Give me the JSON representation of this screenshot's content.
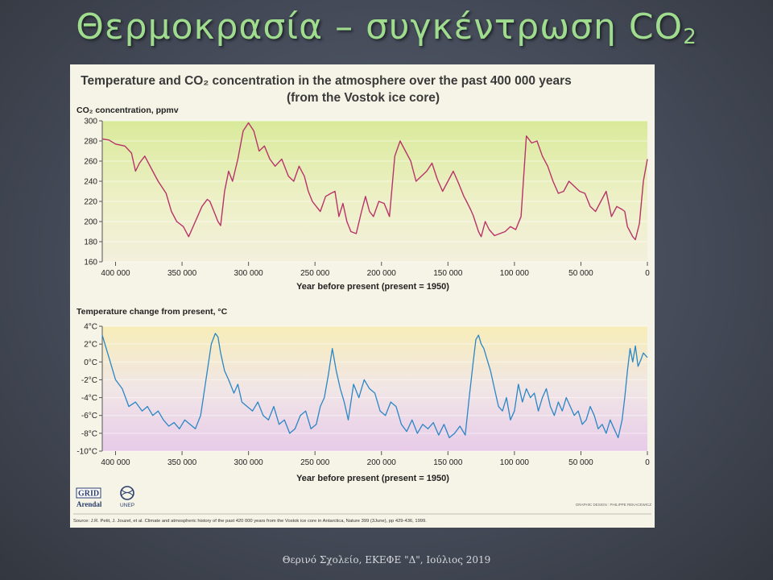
{
  "slide": {
    "title_main": "Θερμοκρασία – συγκέντρωση CO",
    "title_sub": "2",
    "footer": "Θερινό Σχολείο, ΕΚΕΦΕ \"Δ\", Ιούλιος 2019"
  },
  "figure": {
    "title_line1": "Temperature and CO₂ concentration in the atmosphere over the past 400 000 years",
    "title_line2": "(from the Vostok ice core)",
    "logo_grid": "GRID",
    "logo_arendal": "Arendal",
    "logo_unep": "UNEP",
    "credit": "GRAPHIC DESIGN : PHILIPPE REKACEWICZ",
    "source": "Source: J.R. Petit, J. Jouzel, et al. Climate and atmospheric history of the past 420 000 years from the Vostok ice core in Antarctica, Nature 399 (3June), pp 429-436, 1999."
  },
  "colors": {
    "co2_line": "#b8336a",
    "temp_line": "#2b86c5",
    "title_green": "#9fdc8e"
  },
  "chart_data": [
    {
      "type": "line",
      "ylabel": "CO₂ concentration, ppmv",
      "xlabel": "Year before present (present = 1950)",
      "xlim": [
        410000,
        0
      ],
      "ylim": [
        160,
        300
      ],
      "xticks": [
        400000,
        350000,
        300000,
        250000,
        200000,
        150000,
        100000,
        50000,
        0
      ],
      "xtick_labels": [
        "400 000",
        "350 000",
        "300 000",
        "250 000",
        "200 000",
        "150 000",
        "100 000",
        "50 000",
        "0"
      ],
      "yticks": [
        160,
        180,
        200,
        220,
        240,
        260,
        280,
        300
      ],
      "ytick_labels": [
        "160",
        "180",
        "200",
        "220",
        "240",
        "260",
        "280",
        "300"
      ],
      "series": [
        {
          "x": [
            410000,
            405000,
            400000,
            393000,
            388000,
            385000,
            382000,
            378000,
            372000,
            368000,
            362000,
            358000,
            354000,
            349000,
            345000,
            340000,
            335000,
            331000,
            329000,
            326000,
            323000,
            321000,
            318000,
            315000,
            312000,
            308000,
            304000,
            300000,
            296000,
            292000,
            288000,
            284000,
            280000,
            275000,
            270000,
            266000,
            262000,
            258000,
            255000,
            252000,
            249000,
            246000,
            242000,
            238000,
            235000,
            232000,
            229000,
            226000,
            223000,
            219000,
            215000,
            212000,
            209000,
            206000,
            202000,
            198000,
            194000,
            190000,
            186000,
            182000,
            178000,
            174000,
            170000,
            166000,
            162000,
            158000,
            154000,
            150000,
            146000,
            142000,
            138000,
            136000,
            133000,
            131000,
            129000,
            127000,
            125000,
            122000,
            119000,
            115000,
            111000,
            107000,
            103000,
            99000,
            95000,
            91000,
            87000,
            83000,
            79000,
            75000,
            71000,
            67000,
            63000,
            59000,
            55000,
            51000,
            47000,
            43000,
            39000,
            35000,
            31000,
            27000,
            23000,
            19000,
            17000,
            15000,
            13000,
            11000,
            9000,
            6000,
            3000,
            0
          ],
          "y": [
            282,
            281,
            277,
            275,
            268,
            250,
            258,
            265,
            250,
            240,
            228,
            210,
            200,
            195,
            185,
            200,
            215,
            222,
            220,
            210,
            200,
            196,
            230,
            250,
            240,
            262,
            290,
            298,
            290,
            270,
            275,
            262,
            255,
            262,
            245,
            240,
            255,
            245,
            230,
            220,
            215,
            210,
            225,
            228,
            230,
            205,
            218,
            200,
            190,
            188,
            210,
            225,
            210,
            205,
            220,
            218,
            205,
            265,
            280,
            270,
            260,
            240,
            245,
            250,
            258,
            242,
            230,
            240,
            250,
            238,
            225,
            220,
            212,
            206,
            198,
            190,
            185,
            200,
            192,
            186,
            188,
            190,
            195,
            192,
            205,
            285,
            278,
            280,
            265,
            255,
            240,
            228,
            230,
            240,
            235,
            230,
            228,
            215,
            210,
            220,
            230,
            205,
            215,
            212,
            210,
            195,
            190,
            185,
            182,
            198,
            240,
            262
          ]
        }
      ]
    },
    {
      "type": "line",
      "ylabel": "Temperature change from present, °C",
      "xlabel": "Year before present (present = 1950)",
      "xlim": [
        410000,
        0
      ],
      "ylim": [
        -10,
        4
      ],
      "xticks": [
        400000,
        350000,
        300000,
        250000,
        200000,
        150000,
        100000,
        50000,
        0
      ],
      "xtick_labels": [
        "400 000",
        "350 000",
        "300 000",
        "250 000",
        "200 000",
        "150 000",
        "100 000",
        "50 000",
        "0"
      ],
      "yticks": [
        4,
        2,
        0,
        -2,
        -4,
        -6,
        -8,
        -10
      ],
      "ytick_labels": [
        "4°C",
        "2°C",
        "0°C",
        "-2°C",
        "-4°C",
        "-6°C",
        "-8°C",
        "-10°C"
      ],
      "series": [
        {
          "x": [
            410000,
            405000,
            400000,
            395000,
            390000,
            385000,
            380000,
            376000,
            372000,
            368000,
            364000,
            360000,
            356000,
            352000,
            348000,
            344000,
            340000,
            336000,
            332000,
            328000,
            325000,
            323000,
            321000,
            318000,
            315000,
            311000,
            308000,
            305000,
            301000,
            297000,
            293000,
            289000,
            285000,
            281000,
            277000,
            273000,
            269000,
            265000,
            261000,
            257000,
            253000,
            249000,
            246000,
            243000,
            240000,
            237000,
            234000,
            231000,
            228000,
            225000,
            221000,
            217000,
            213000,
            209000,
            205000,
            201000,
            197000,
            193000,
            189000,
            185000,
            181000,
            177000,
            173000,
            169000,
            165000,
            161000,
            157000,
            153000,
            149000,
            145000,
            141000,
            137000,
            134000,
            131000,
            129000,
            127000,
            125000,
            123000,
            121000,
            118000,
            115000,
            112000,
            109000,
            106000,
            103000,
            100000,
            97000,
            94000,
            91000,
            88000,
            85000,
            82000,
            79000,
            76000,
            73000,
            70000,
            67000,
            64000,
            61000,
            58000,
            55000,
            52000,
            49000,
            46000,
            43000,
            40000,
            37000,
            34000,
            31000,
            28000,
            25000,
            22000,
            19000,
            17000,
            15000,
            13000,
            11000,
            9000,
            7000,
            5000,
            3000,
            0
          ],
          "y": [
            3.0,
            0.5,
            -2.0,
            -3.0,
            -5.0,
            -4.5,
            -5.5,
            -5.0,
            -6.0,
            -5.5,
            -6.5,
            -7.2,
            -6.8,
            -7.5,
            -6.5,
            -7.0,
            -7.5,
            -6.0,
            -2.0,
            2.0,
            3.2,
            2.8,
            1.0,
            -1.0,
            -2.0,
            -3.5,
            -2.5,
            -4.5,
            -5.0,
            -5.5,
            -4.5,
            -6.0,
            -6.5,
            -5.0,
            -7.0,
            -6.5,
            -8.0,
            -7.5,
            -6.0,
            -5.5,
            -7.5,
            -7.0,
            -5.0,
            -4.0,
            -1.5,
            1.5,
            -1.0,
            -3.0,
            -4.5,
            -6.5,
            -2.5,
            -4.0,
            -2.0,
            -3.0,
            -3.5,
            -5.5,
            -6.0,
            -4.5,
            -5.0,
            -7.0,
            -7.8,
            -6.5,
            -8.0,
            -7.0,
            -7.5,
            -6.8,
            -8.2,
            -7.0,
            -8.5,
            -8.0,
            -7.2,
            -8.2,
            -4.0,
            0.0,
            2.5,
            3.0,
            2.0,
            1.5,
            0.5,
            -1.0,
            -3.0,
            -5.0,
            -5.5,
            -4.0,
            -6.5,
            -5.5,
            -2.5,
            -4.5,
            -3.0,
            -4.0,
            -3.5,
            -5.5,
            -4.0,
            -3.0,
            -5.0,
            -6.0,
            -4.5,
            -5.5,
            -4.0,
            -5.0,
            -6.0,
            -5.5,
            -7.0,
            -6.5,
            -5.0,
            -6.0,
            -7.5,
            -7.0,
            -8.0,
            -6.5,
            -7.5,
            -8.5,
            -6.5,
            -4.0,
            -1.0,
            1.5,
            0.0,
            1.8,
            -0.5,
            0.2,
            1.0,
            0.5
          ]
        }
      ]
    }
  ]
}
